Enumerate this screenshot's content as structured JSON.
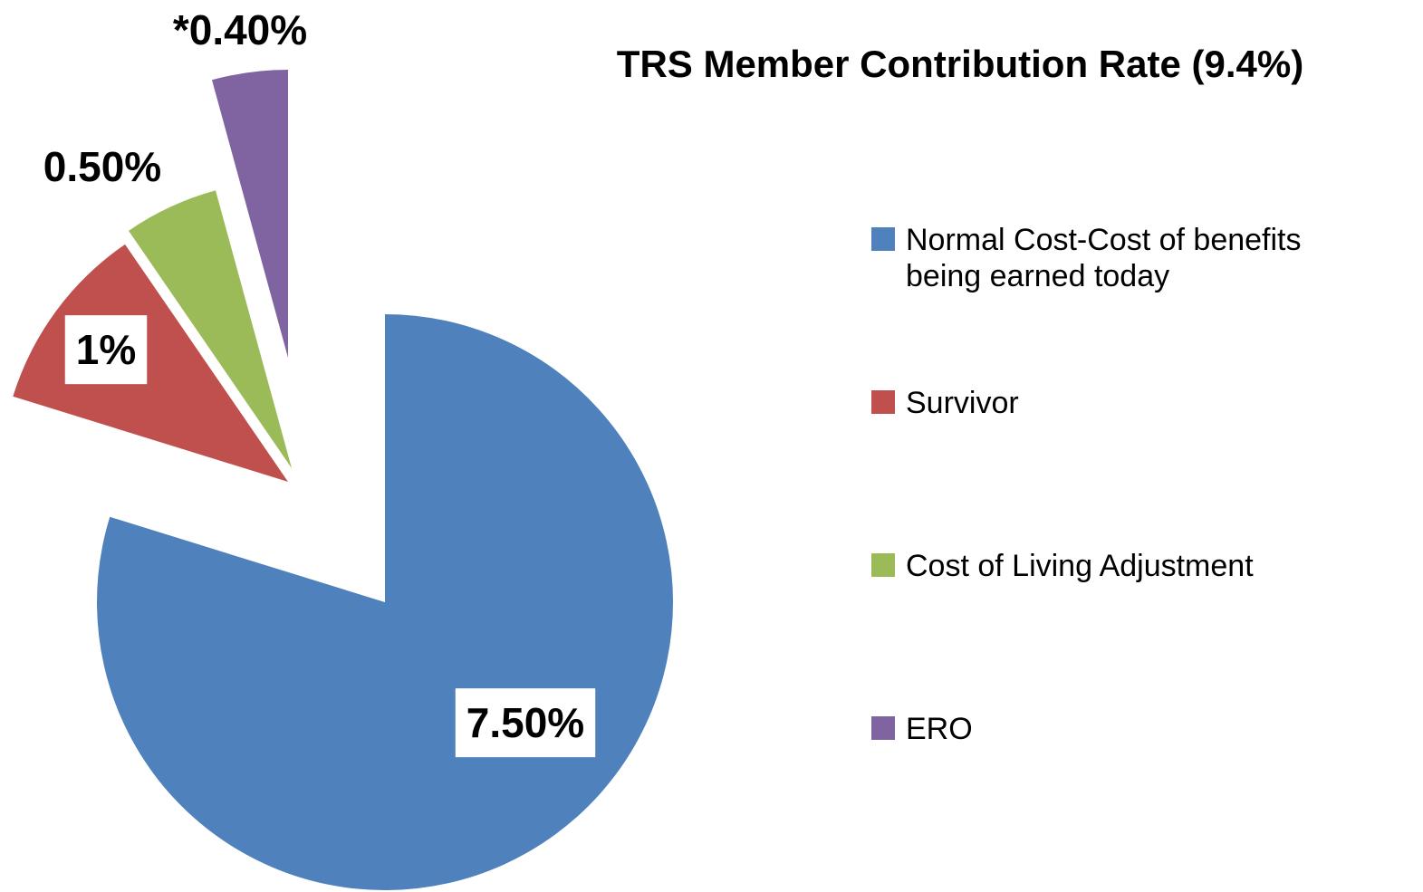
{
  "chart_data": {
    "type": "pie",
    "title": "TRS Member Contribution Rate (9.4%)",
    "categories": [
      "Normal Cost-Cost of benefits being earned today",
      "Survivor",
      "Cost of Living Adjustment",
      "ERO"
    ],
    "values": [
      7.5,
      1,
      0.5,
      0.4
    ],
    "value_labels": [
      "7.50%",
      "1%",
      "0.50%",
      "*0.40%"
    ],
    "colors": [
      "#4f81bd",
      "#c0504d",
      "#9bbb59",
      "#8064a2"
    ],
    "legend": "right"
  }
}
